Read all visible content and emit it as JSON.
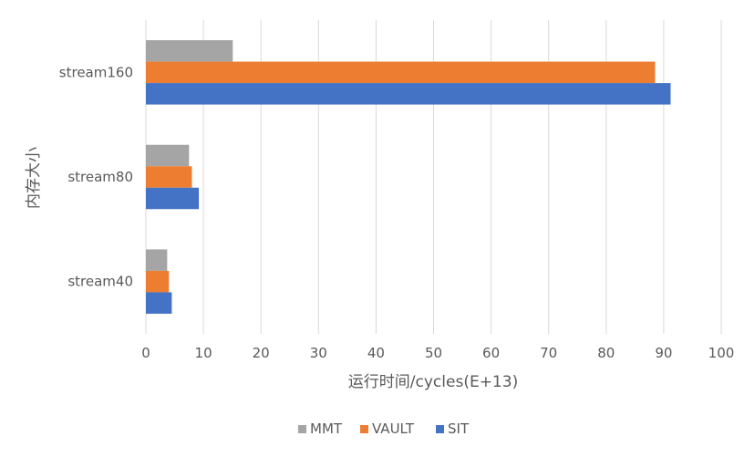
{
  "chart_data": {
    "type": "bar",
    "orientation": "horizontal",
    "categories": [
      "stream40",
      "stream80",
      "stream160"
    ],
    "series": [
      {
        "name": "MMT",
        "values": [
          3.7,
          7.5,
          15.1
        ],
        "color": "#A5A5A5"
      },
      {
        "name": "VAULT",
        "values": [
          4.0,
          8.0,
          88.5
        ],
        "color": "#ED7D31"
      },
      {
        "name": "SIT",
        "values": [
          4.5,
          9.2,
          91.2
        ],
        "color": "#4472C4"
      }
    ],
    "xlabel": "运行时间/cycles(E+13)",
    "ylabel": "内存大小",
    "xlim": [
      0,
      100
    ],
    "xticks": [
      0,
      10,
      20,
      30,
      40,
      50,
      60,
      70,
      80,
      90,
      100
    ],
    "grid": true,
    "legend": "bottom"
  }
}
